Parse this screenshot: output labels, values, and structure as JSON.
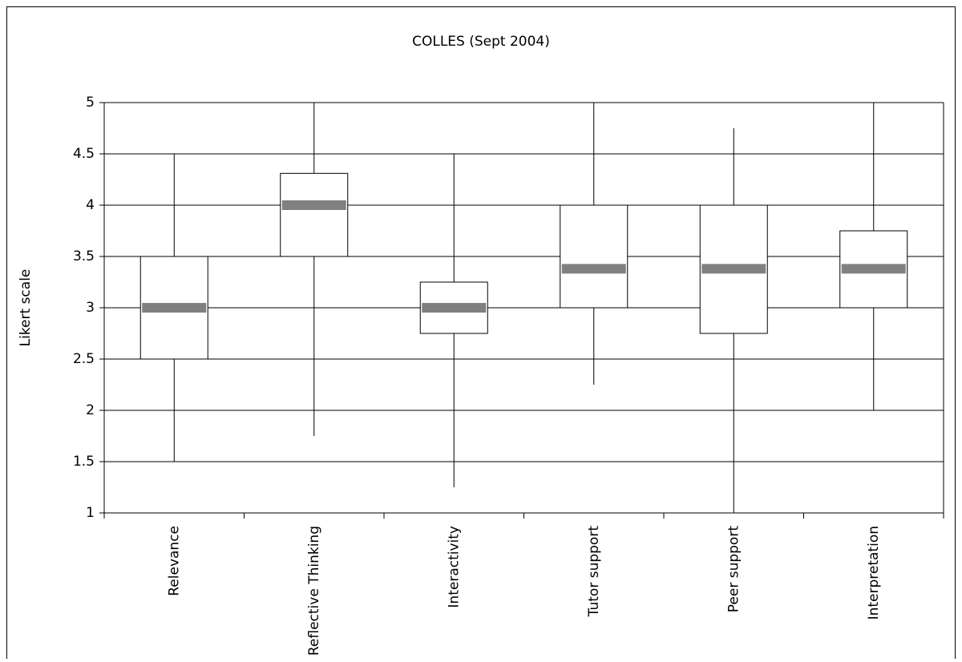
{
  "chart_data": {
    "type": "box",
    "title": "COLLES (Sept 2004)",
    "y_label": "Likert scale",
    "categories": [
      "Relevance",
      "Reflective Thinking",
      "Interactivity",
      "Tutor support",
      "Peer support",
      "Interpretation"
    ],
    "boxes": [
      {
        "low": 1.5,
        "q1": 2.5,
        "median": 3.0,
        "q3": 3.5,
        "high": 4.5
      },
      {
        "low": 1.75,
        "q1": 3.5,
        "median": 4.0,
        "q3": 4.31,
        "high": 5
      },
      {
        "low": 1.25,
        "q1": 2.75,
        "median": 3.0,
        "q3": 3.25,
        "high": 4.5
      },
      {
        "low": 2.25,
        "q1": 3.0,
        "median": 3.38,
        "q3": 4.0,
        "high": 5
      },
      {
        "low": 1,
        "q1": 2.75,
        "median": 3.38,
        "q3": 4.0,
        "high": 4.75
      },
      {
        "low": 2.0,
        "q1": 3.0,
        "median": 3.38,
        "q3": 3.75,
        "high": 5
      }
    ],
    "box_color": "#ffffff",
    "median_color": "#808080",
    "ylim": [
      1,
      5
    ],
    "yticks": [
      1,
      1.5,
      2,
      2.5,
      3,
      3.5,
      4,
      4.5,
      5
    ],
    "grid": true
  }
}
